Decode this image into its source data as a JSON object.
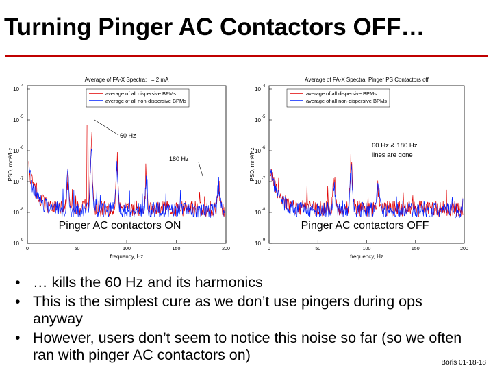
{
  "header": {
    "title": "Turning Pinger AC Contactors OFF…"
  },
  "plots": [
    {
      "title": "Average of FA-X Spectra; I = 2 mA",
      "legend": [
        "average of all dispersive BPMs",
        "average of all non-dispersive BPMs"
      ],
      "annotations": [
        "60 Hz",
        "180 Hz"
      ],
      "caption": "Pinger AC contactors ON",
      "xlabel": "frequency, Hz",
      "ylabel": "PSD, mm²/Hz",
      "xticks": [
        "0",
        "50",
        "100",
        "150",
        "200"
      ],
      "yticks": [
        {
          "base": "10",
          "exp": "-4"
        },
        {
          "base": "10",
          "exp": "-5"
        },
        {
          "base": "10",
          "exp": "-6"
        },
        {
          "base": "10",
          "exp": "-7"
        },
        {
          "base": "10",
          "exp": "-8"
        },
        {
          "base": "10",
          "exp": "-9"
        }
      ]
    },
    {
      "title": "Average of FA-X Spectra; Pinger PS Contactors off",
      "legend": [
        "average of all dispersive BPMs",
        "average of all non-dispersive BPMs"
      ],
      "annotations": [
        "60 Hz & 180 Hz",
        "lines are gone"
      ],
      "caption": "Pinger AC contactors OFF",
      "xlabel": "frequency, Hz",
      "ylabel": "PSD, mm²/Hz",
      "xticks": [
        "0",
        "50",
        "100",
        "150",
        "200"
      ],
      "yticks": [
        {
          "base": "10",
          "exp": "-4"
        },
        {
          "base": "10",
          "exp": "-5"
        },
        {
          "base": "10",
          "exp": "-6"
        },
        {
          "base": "10",
          "exp": "-7"
        },
        {
          "base": "10",
          "exp": "-8"
        },
        {
          "base": "10",
          "exp": "-9"
        }
      ]
    }
  ],
  "bullets": [
    "… kills the 60 Hz and its harmonics",
    "This is the simplest cure as we don’t use pingers during ops anyway",
    "However, users don’t seem to notice this noise so far (so we often ran with pinger AC contactors on)"
  ],
  "footer": "Boris 01-18-18"
}
